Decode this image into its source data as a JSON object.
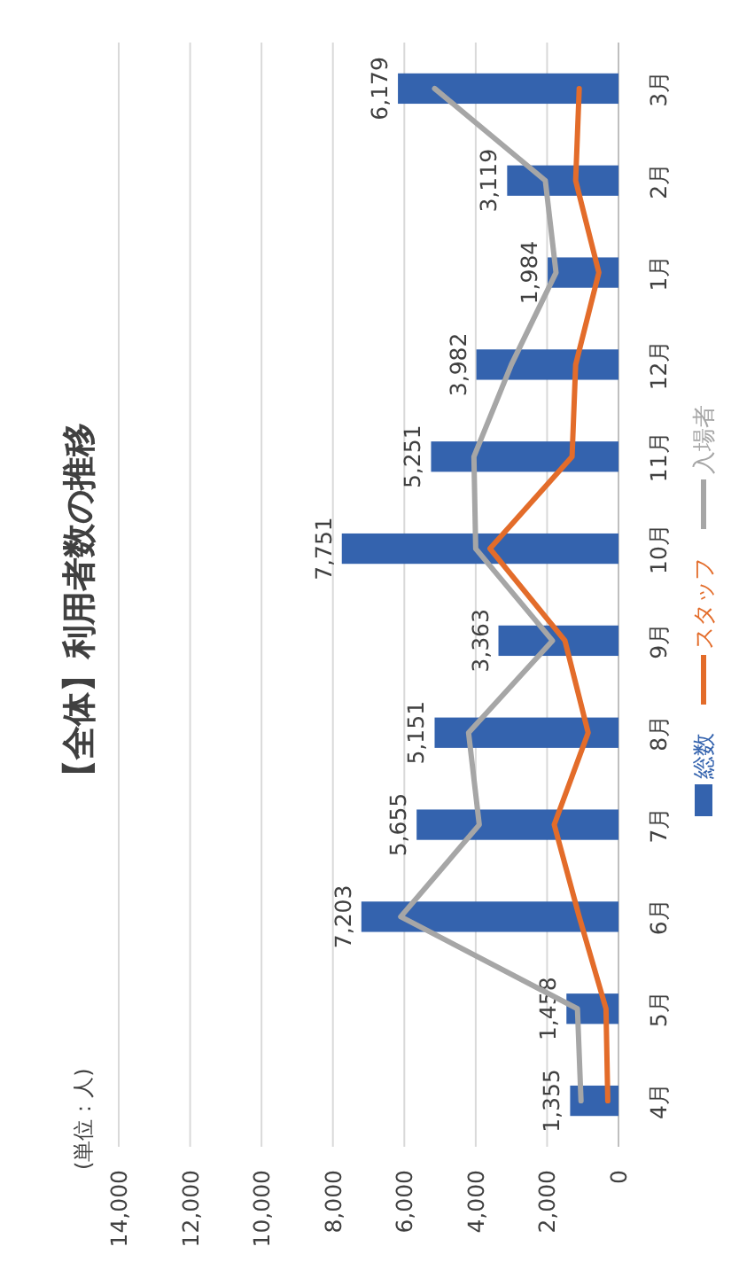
{
  "chart_data": {
    "type": "bar",
    "orientation": "horizontal",
    "title": "【全体】利用者数の推移",
    "annotations": [
      "(単位：人)"
    ],
    "categories": [
      "3月",
      "2月",
      "1月",
      "12月",
      "11月",
      "10月",
      "9月",
      "8月",
      "7月",
      "6月",
      "5月",
      "4月"
    ],
    "series": [
      {
        "name": "総数",
        "color": "#3463ae",
        "values": [
          6179,
          3119,
          1984,
          3982,
          5251,
          7751,
          3363,
          5151,
          5655,
          7203,
          1458,
          1355
        ],
        "value_labels": [
          "6,179",
          "3,119",
          "1,984",
          "3,982",
          "5,251",
          "7,751",
          "3,363",
          "5,151",
          "5,655",
          "7,203",
          "1,458",
          "1,355"
        ]
      },
      {
        "name": "スタッフ",
        "type": "line",
        "color": "#e36c2a",
        "values": [
          1100,
          1200,
          550,
          1200,
          1300,
          3600,
          1500,
          850,
          1800,
          1100,
          350,
          300
        ]
      },
      {
        "name": "入場者",
        "type": "line",
        "color": "#a6a6a6",
        "values": [
          5150,
          2050,
          1750,
          3000,
          4050,
          4000,
          1850,
          4200,
          3900,
          6100,
          1150,
          1050
        ]
      }
    ],
    "xlim": [
      14000,
      0
    ],
    "xticks": [
      {
        "value": 14000,
        "label": "14,000"
      },
      {
        "value": 12000,
        "label": "12,000"
      },
      {
        "value": 10000,
        "label": "10,000"
      },
      {
        "value": 8000,
        "label": "8,000"
      },
      {
        "value": 6000,
        "label": "6,000"
      },
      {
        "value": 4000,
        "label": "4,000"
      },
      {
        "value": 2000,
        "label": "2,000"
      },
      0
    ],
    "grid": "x",
    "legend": "right"
  }
}
